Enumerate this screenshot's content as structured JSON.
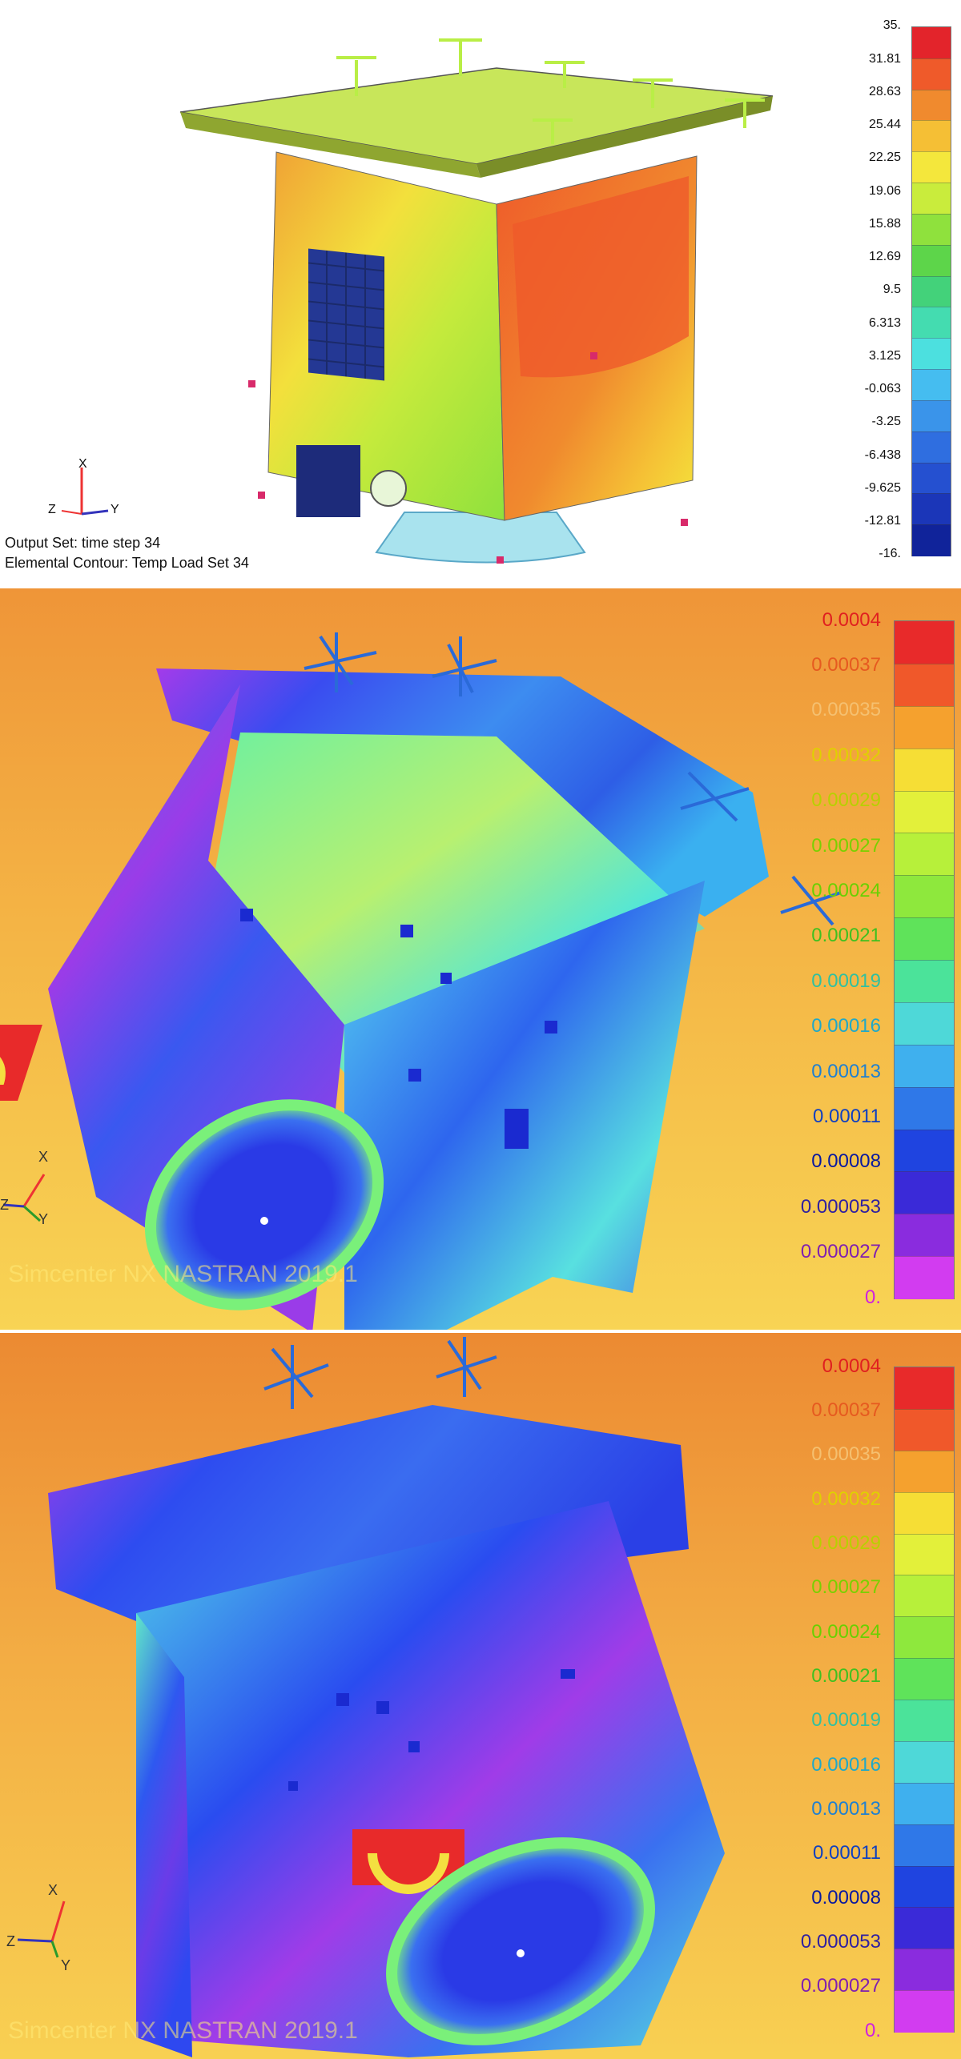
{
  "panels": [
    {
      "caption_line1": "Output Set: time step 34",
      "caption_line2": "Elemental Contour: Temp Load Set 34",
      "legend": [
        "35.",
        "31.81",
        "28.63",
        "25.44",
        "22.25",
        "19.06",
        "15.88",
        "12.69",
        "9.5",
        "6.313",
        "3.125",
        "-0.063",
        "-3.25",
        "-6.438",
        "-9.625",
        "-12.81",
        "-16."
      ],
      "legend_colors": [
        "#e3242b",
        "#ef5a2a",
        "#f08a2e",
        "#f5bf35",
        "#f4e73c",
        "#c9ec3c",
        "#8fe13d",
        "#5dd54a",
        "#43d27a",
        "#44dcb0",
        "#4ce0df",
        "#45bdf0",
        "#3a94ea",
        "#2f6ee0",
        "#2550d0",
        "#1b36b8",
        "#10239a"
      ],
      "axis": {
        "x": "X",
        "y": "Y",
        "z": "Z"
      }
    },
    {
      "legend": [
        "0.0004",
        "0.00037",
        "0.00035",
        "0.00032",
        "0.00029",
        "0.00027",
        "0.00024",
        "0.00021",
        "0.00019",
        "0.00016",
        "0.00013",
        "0.00011",
        "0.00008",
        "0.000053",
        "0.000027",
        "0."
      ],
      "legend_colors": [
        "#e82a2a",
        "#f0582a",
        "#f5a12e",
        "#f6de35",
        "#e3f03a",
        "#b7f03a",
        "#8ee83d",
        "#5fe35a",
        "#4be39a",
        "#4ed8d8",
        "#3fb0ee",
        "#2f78e8",
        "#1f44e0",
        "#3a2ad8",
        "#8a2cde",
        "#d23cf0"
      ],
      "label_colors": [
        "#e02020",
        "#e65a20",
        "#f5c070",
        "#e0d000",
        "#b8d000",
        "#7ad000",
        "#6ad000",
        "#40c020",
        "#30c0a0",
        "#20a8c8",
        "#2080d0",
        "#1040c0",
        "#0818a0",
        "#3020a0",
        "#8020b0",
        "#d020e0"
      ],
      "axis": {
        "x": "X",
        "y": "Y",
        "z": "Z"
      },
      "watermark": "Simcenter NX NASTRAN 2019.1"
    },
    {
      "legend": [
        "0.0004",
        "0.00037",
        "0.00035",
        "0.00032",
        "0.00029",
        "0.00027",
        "0.00024",
        "0.00021",
        "0.00019",
        "0.00016",
        "0.00013",
        "0.00011",
        "0.00008",
        "0.000053",
        "0.000027",
        "0."
      ],
      "legend_colors": [
        "#e82a2a",
        "#f0582a",
        "#f5a12e",
        "#f6de35",
        "#e3f03a",
        "#b7f03a",
        "#8ee83d",
        "#5fe35a",
        "#4be39a",
        "#4ed8d8",
        "#3fb0ee",
        "#2f78e8",
        "#1f44e0",
        "#3a2ad8",
        "#8a2cde",
        "#d23cf0"
      ],
      "label_colors": [
        "#e02020",
        "#e65a20",
        "#f5c070",
        "#e0d000",
        "#b8d000",
        "#7ad000",
        "#6ad000",
        "#40c020",
        "#30c0a0",
        "#20a8c8",
        "#2080d0",
        "#1040c0",
        "#0818a0",
        "#3020a0",
        "#8020b0",
        "#d020e0"
      ],
      "axis": {
        "x": "X",
        "y": "Y",
        "z": "Z"
      },
      "watermark": "Simcenter NX NASTRAN 2019.1"
    }
  ]
}
